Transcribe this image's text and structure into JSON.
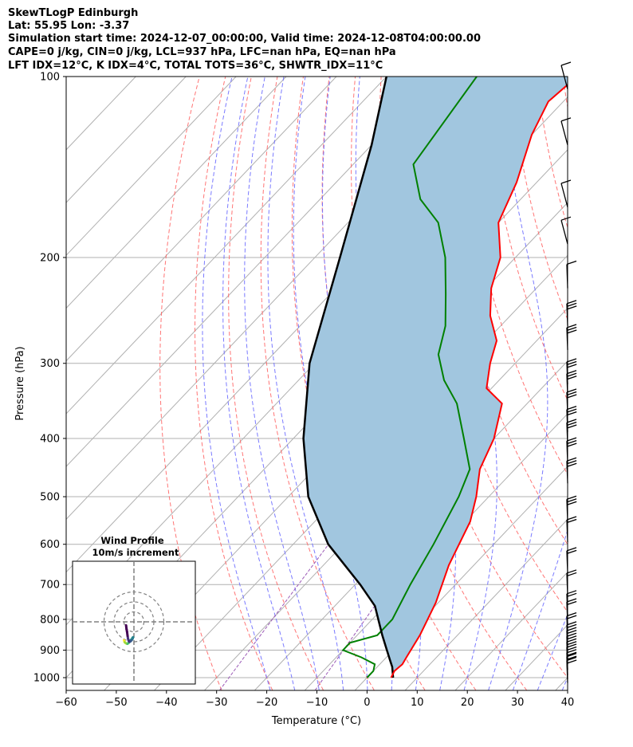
{
  "header": {
    "line1": "SkewTLogP Edinburgh",
    "line2": "Lat: 55.95   Lon: -3.37",
    "line3": "Simulation start time: 2024-12-07_00:00:00, Valid time: 2024-12-08T04:00:00.00",
    "line4": "CAPE=0 j/kg, CIN=0 j/kg, LCL=937 hPa, LFC=nan hPa, EQ=nan hPa",
    "line5": "LFT IDX=12°C, K IDX=4°C, TOTAL TOTS=36°C, SHWTR_IDX=11°C"
  },
  "axes": {
    "xlabel": "Temperature (°C)",
    "ylabel": "Pressure (hPa)",
    "xticks": [
      "−60",
      "−50",
      "−40",
      "−30",
      "−20",
      "−10",
      "0",
      "10",
      "20",
      "30",
      "40"
    ],
    "yticks": [
      "100",
      "200",
      "300",
      "400",
      "500",
      "600",
      "700",
      "800",
      "900",
      "1000"
    ]
  },
  "inset": {
    "title1": "Wind Profile",
    "title2": "10m/s increment"
  },
  "colors": {
    "temperature": "#ff0000",
    "dewpoint": "#008000",
    "parcel": "#000000",
    "cape_fill": "#a1c6df",
    "dry_adiabats": "#ff6666",
    "moist_adiabats": "#6b6bff",
    "mixing_ratio": "#9b59b6",
    "isotherms": "#b0b0b0"
  },
  "chart_data": {
    "type": "line",
    "skew": true,
    "x_scale": "skewed-linear",
    "y_scale": "log-inverted",
    "xlim": [
      -60,
      40
    ],
    "ylim": [
      1050,
      100
    ],
    "grid": true,
    "series": [
      {
        "key": "temperature",
        "points": [
          [
            4.8,
            1000
          ],
          [
            4.2,
            975
          ],
          [
            4.5,
            950
          ],
          [
            4.0,
            925
          ],
          [
            2.5,
            850
          ],
          [
            -0.5,
            750
          ],
          [
            -5,
            650
          ],
          [
            -9,
            550
          ],
          [
            -12.5,
            500
          ],
          [
            -17,
            450
          ],
          [
            -20,
            400
          ],
          [
            -25,
            350
          ],
          [
            -31,
            330
          ],
          [
            -35,
            300
          ],
          [
            -38,
            275
          ],
          [
            -44,
            250
          ],
          [
            -49,
            225
          ],
          [
            -53,
            200
          ],
          [
            -60,
            175
          ],
          [
            -64,
            150
          ],
          [
            -70,
            125
          ],
          [
            -73,
            110
          ],
          [
            -72,
            100
          ]
        ]
      },
      {
        "key": "dewpoint",
        "points": [
          [
            0,
            1000
          ],
          [
            0,
            975
          ],
          [
            -1,
            950
          ],
          [
            -5,
            925
          ],
          [
            -10,
            900
          ],
          [
            -10,
            875
          ],
          [
            -6,
            850
          ],
          [
            -6,
            800
          ],
          [
            -9,
            700
          ],
          [
            -12,
            600
          ],
          [
            -16,
            500
          ],
          [
            -19,
            450
          ],
          [
            -26,
            400
          ],
          [
            -34,
            350
          ],
          [
            -41,
            320
          ],
          [
            -47,
            290
          ],
          [
            -51,
            260
          ],
          [
            -57,
            230
          ],
          [
            -64,
            200
          ],
          [
            -72,
            175
          ],
          [
            -80,
            160
          ],
          [
            -88,
            140
          ],
          [
            -92,
            100
          ]
        ]
      },
      {
        "key": "parcel",
        "points": [
          [
            5.2,
            1000
          ],
          [
            3,
            960
          ],
          [
            1.4,
            937
          ],
          [
            -2,
            890
          ],
          [
            -5,
            850
          ],
          [
            -12,
            760
          ],
          [
            -19,
            700
          ],
          [
            -33,
            600
          ],
          [
            -46,
            500
          ],
          [
            -58,
            400
          ],
          [
            -71,
            300
          ],
          [
            -85,
            200
          ],
          [
            -100,
            130
          ],
          [
            -110,
            100
          ]
        ]
      }
    ],
    "wind_barbs": {
      "pressures": [
        105,
        130,
        165,
        190,
        225,
        260,
        285,
        325,
        340,
        365,
        390,
        410,
        440,
        475,
        550,
        595,
        670,
        730,
        790,
        815,
        860,
        890,
        910,
        930,
        950,
        970,
        990,
        1005,
        1020
      ]
    },
    "hodograph": {
      "rings_ms": [
        10,
        20,
        30
      ],
      "u": [
        3.5,
        3.2,
        2.8,
        2.0,
        1.0,
        0.0,
        -1.2,
        -2.5,
        -3.5,
        -4.5,
        -5.0,
        -5.5,
        -5.0,
        -4.0,
        -3.0,
        -2.2,
        -1.5,
        -1.0,
        -0.5,
        0.0,
        0.5,
        1.0,
        1.5
      ],
      "v": [
        -18.5,
        -19.5,
        -20.5,
        -21.2,
        -21.8,
        -22.0,
        -21.0,
        -19.5,
        -18.0,
        -17.2,
        -16.0,
        -15.5,
        -17.0,
        -18.5,
        -19.5,
        -20.0,
        -19.8,
        -18.5,
        -17.0,
        -14.0,
        -10.0,
        -7.5,
        -3.5
      ]
    }
  }
}
